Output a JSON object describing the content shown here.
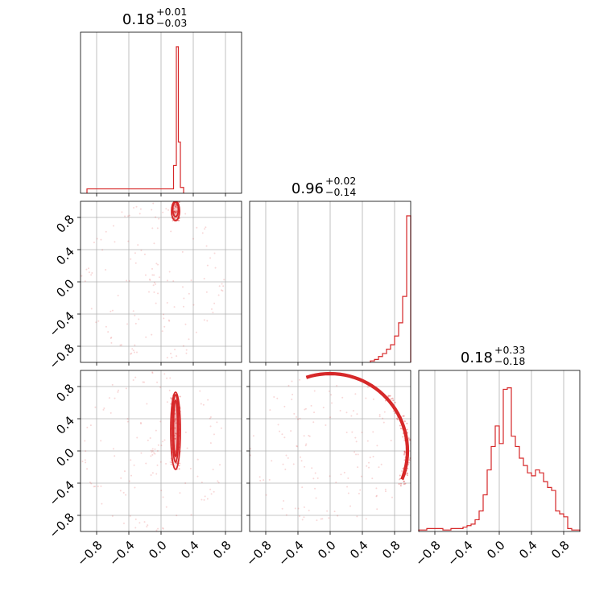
{
  "chart_data": {
    "type": "corner",
    "color": "#d62728",
    "grid": true,
    "range": [
      -1.0,
      1.0
    ],
    "ticks": [
      -0.8,
      -0.4,
      0.0,
      0.4,
      0.8
    ],
    "tick_labels": [
      "−0.8",
      "−0.4",
      "0.0",
      "0.4",
      "0.8"
    ],
    "x_axis_label_columns": [
      "−0.8",
      "−0.4",
      "0.0",
      "0.4"
    ],
    "titles": [
      {
        "value": "0.18",
        "plus": "+0.01",
        "minus": "−0.03"
      },
      {
        "value": "0.96",
        "plus": "+0.02",
        "minus": "−0.14"
      },
      {
        "value": "0.18",
        "plus": "+0.33",
        "minus": "−0.18"
      }
    ],
    "histograms": [
      {
        "parameter": 0,
        "bin_edges": [
          -0.92,
          0.155,
          0.19,
          0.215,
          0.24,
          0.28
        ],
        "counts": [
          0.03,
          0.19,
          1.0,
          0.35,
          0.04
        ]
      },
      {
        "parameter": 1,
        "bin_edges": [
          0.5,
          0.55,
          0.6,
          0.65,
          0.7,
          0.75,
          0.8,
          0.85,
          0.9,
          0.95,
          1.0
        ],
        "counts": [
          0.01,
          0.02,
          0.04,
          0.06,
          0.09,
          0.12,
          0.18,
          0.27,
          0.45,
          1.0
        ]
      },
      {
        "parameter": 2,
        "bin_edges": [
          -1.0,
          -0.95,
          -0.9,
          -0.85,
          -0.8,
          -0.75,
          -0.7,
          -0.65,
          -0.6,
          -0.55,
          -0.5,
          -0.45,
          -0.4,
          -0.35,
          -0.3,
          -0.25,
          -0.2,
          -0.15,
          -0.1,
          -0.05,
          0.0,
          0.05,
          0.1,
          0.15,
          0.2,
          0.25,
          0.3,
          0.35,
          0.4,
          0.45,
          0.5,
          0.55,
          0.6,
          0.65,
          0.7,
          0.75,
          0.8,
          0.85,
          0.9,
          0.95,
          1.0
        ],
        "counts": [
          0.01,
          0.01,
          0.02,
          0.02,
          0.02,
          0.02,
          0.01,
          0.01,
          0.02,
          0.02,
          0.02,
          0.03,
          0.04,
          0.05,
          0.08,
          0.14,
          0.25,
          0.42,
          0.58,
          0.72,
          0.6,
          0.97,
          0.98,
          0.65,
          0.58,
          0.5,
          0.45,
          0.4,
          0.38,
          0.42,
          0.4,
          0.34,
          0.3,
          0.28,
          0.14,
          0.12,
          0.1,
          0.02,
          0.01,
          0.01
        ]
      }
    ],
    "joint_panels": [
      {
        "x_parameter": 0,
        "y_parameter": 1,
        "contours": [
          {
            "center": [
              0.18,
              0.9
            ],
            "rx": 0.035,
            "ry": 0.09
          },
          {
            "center": [
              0.18,
              0.88
            ],
            "rx": 0.05,
            "ry": 0.12
          }
        ]
      },
      {
        "x_parameter": 0,
        "y_parameter": 2,
        "contours": [
          {
            "center": [
              0.18,
              0.28
            ],
            "rx": 0.025,
            "ry": 0.35
          },
          {
            "center": [
              0.18,
              0.28
            ],
            "rx": 0.04,
            "ry": 0.42
          },
          {
            "center": [
              0.18,
              0.25
            ],
            "rx": 0.06,
            "ry": 0.48
          }
        ]
      },
      {
        "x_parameter": 1,
        "y_parameter": 2,
        "contours": [
          {
            "arc_radius": 0.95,
            "width": 0.04
          },
          {
            "arc_radius": 0.97,
            "width": 0.03
          }
        ]
      }
    ]
  }
}
